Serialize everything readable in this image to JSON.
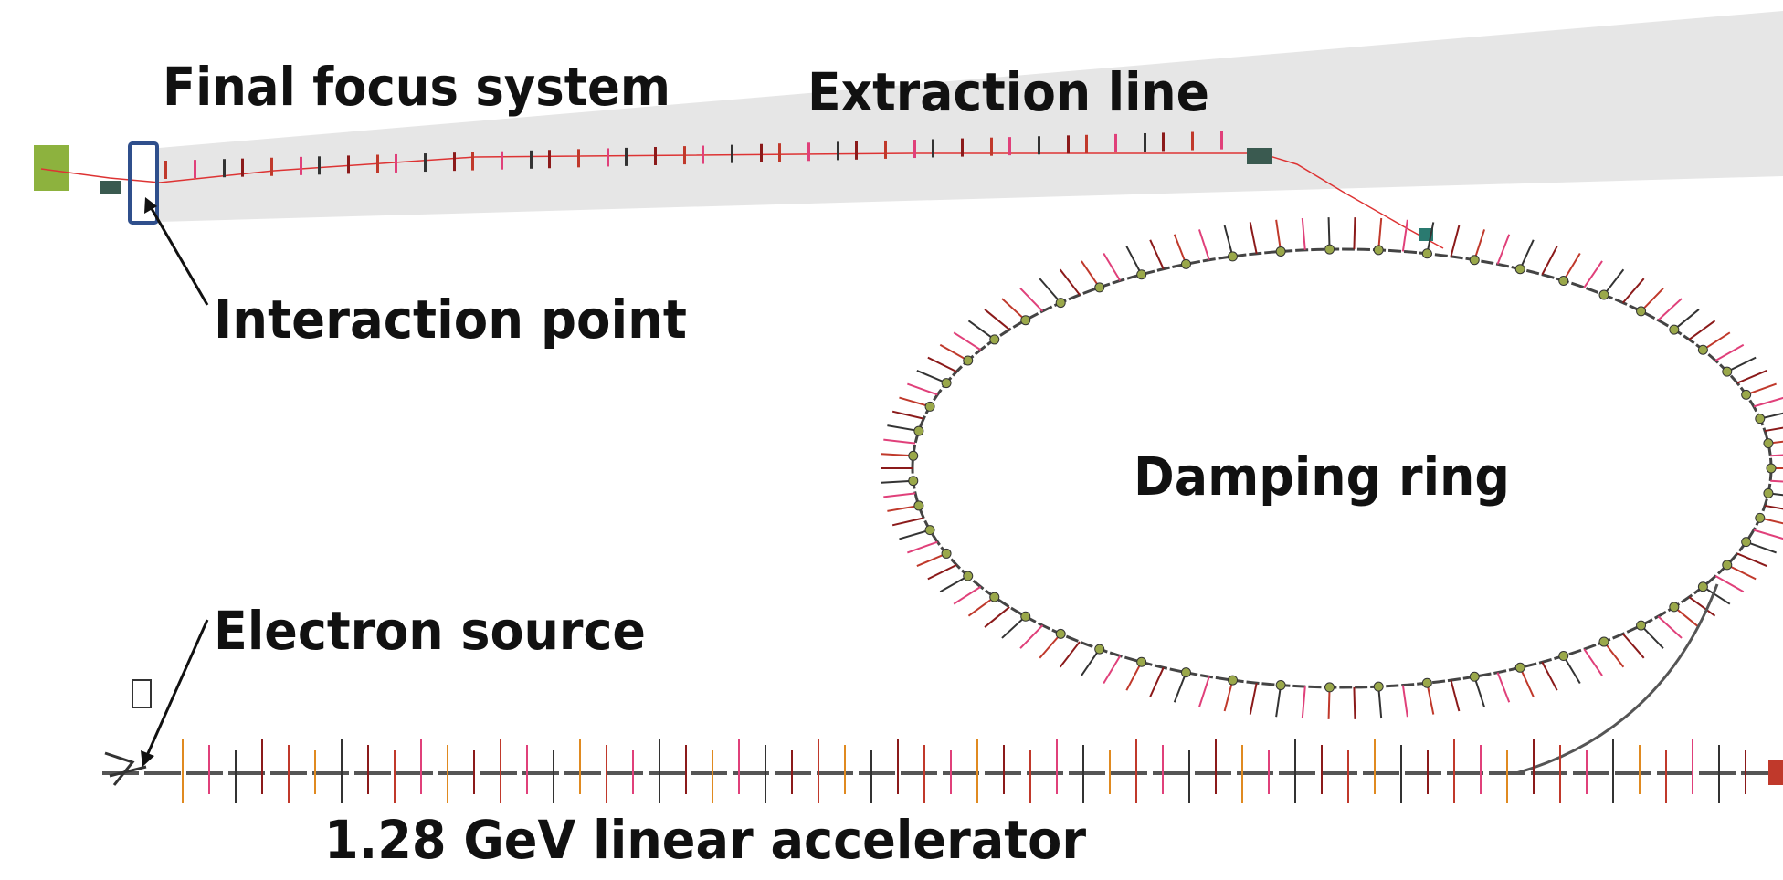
{
  "labels": {
    "final_focus_system": "Final focus system",
    "extraction_line": "Extraction line",
    "interaction_point": "Interaction point",
    "damping_ring": "Damping ring",
    "electron_source": "Electron source",
    "linac": "1.28 GeV linear accelerator"
  }
}
